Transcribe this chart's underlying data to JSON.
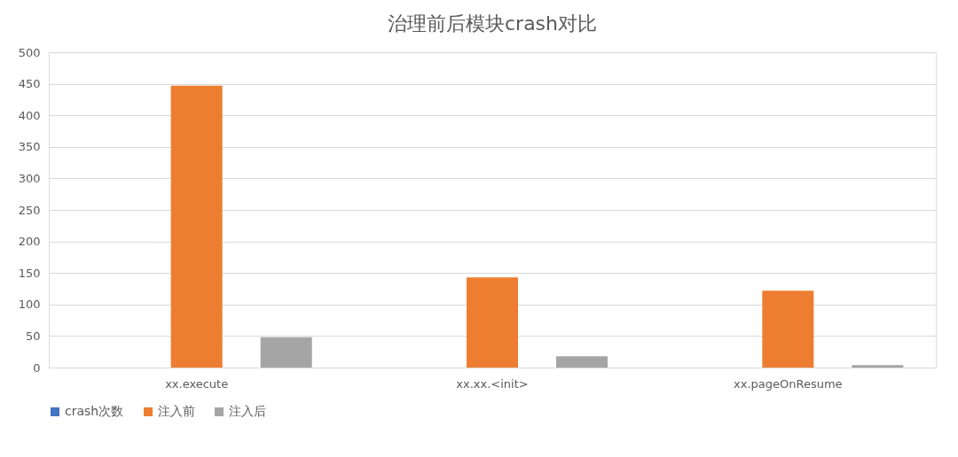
{
  "chart_data": {
    "type": "bar",
    "title": "治理前后模块crash对比",
    "categories": [
      "xx.execute",
      "xx.xx.<init>",
      "xx.pageOnResume"
    ],
    "series": [
      {
        "name": "crash次数",
        "color": "#4472c4",
        "values": [
          null,
          null,
          null
        ]
      },
      {
        "name": "注入前",
        "color": "#ed7d31",
        "values": [
          447,
          143,
          122
        ]
      },
      {
        "name": "注入后",
        "color": "#a5a5a5",
        "values": [
          48,
          18,
          4
        ]
      }
    ],
    "ylim": [
      0,
      500
    ],
    "yticks": [
      0,
      50,
      100,
      150,
      200,
      250,
      300,
      350,
      400,
      450,
      500
    ],
    "grid": "y",
    "legend": "bottom"
  }
}
